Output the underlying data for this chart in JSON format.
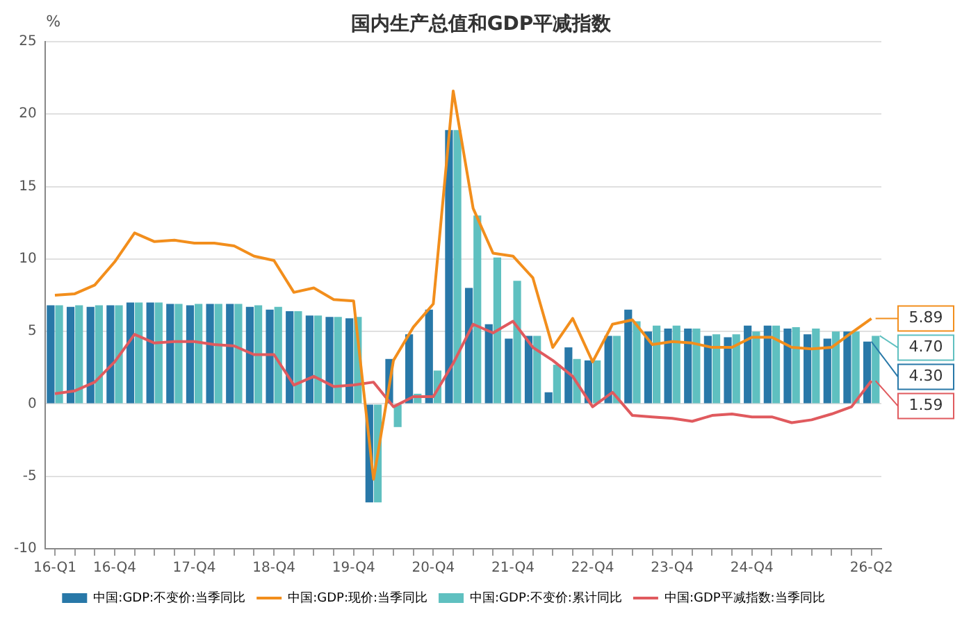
{
  "chart_data": {
    "type": "bar",
    "title": "国内生产总值和GDP平减指数",
    "ylabel": "%",
    "categories": [
      "16-Q1",
      null,
      null,
      "16-Q4",
      null,
      null,
      null,
      "17-Q4",
      null,
      null,
      null,
      "18-Q4",
      null,
      null,
      null,
      "19-Q4",
      null,
      null,
      null,
      "20-Q4",
      null,
      null,
      null,
      "21-Q4",
      null,
      null,
      null,
      "22-Q4",
      null,
      null,
      null,
      "23-Q4",
      null,
      null,
      null,
      "24-Q4",
      null,
      null,
      null,
      null,
      null,
      "26-Q2"
    ],
    "series": [
      {
        "name": "中国:GDP:不变价:当季同比",
        "color": "#2878a8",
        "values": [
          6.8,
          6.7,
          6.7,
          6.8,
          7.0,
          7.0,
          6.9,
          6.8,
          6.9,
          6.9,
          6.7,
          6.5,
          6.4,
          6.1,
          6.0,
          5.9,
          -6.8,
          3.1,
          4.8,
          6.5,
          18.9,
          8.0,
          5.5,
          4.5,
          4.7,
          0.8,
          3.9,
          3.0,
          4.7,
          6.5,
          5.0,
          5.2,
          5.2,
          4.7,
          4.6,
          5.4,
          5.4,
          5.2,
          4.8,
          4.5,
          5.0,
          4.3
        ],
        "value_labels": [
          null,
          null,
          null,
          null,
          null,
          null,
          null,
          null,
          null,
          null,
          null,
          null,
          null,
          null,
          null,
          null,
          null,
          null,
          null,
          null,
          null,
          null,
          null,
          null,
          null,
          null,
          null,
          null,
          null,
          null,
          null,
          null,
          null,
          null,
          null,
          null,
          null,
          null,
          null,
          null,
          null,
          "4.30"
        ]
      },
      {
        "name": "中国:GDP:现价:当季同比",
        "type": "line",
        "color": "#f28e1c",
        "values": [
          7.5,
          7.6,
          8.2,
          9.8,
          11.8,
          11.2,
          11.3,
          11.1,
          11.1,
          10.9,
          10.2,
          9.9,
          7.7,
          8.0,
          7.2,
          7.1,
          -5.2,
          3.0,
          5.3,
          6.9,
          21.6,
          13.5,
          10.4,
          10.2,
          8.7,
          3.9,
          5.9,
          2.9,
          5.5,
          5.8,
          4.1,
          4.3,
          4.2,
          3.9,
          3.9,
          4.6,
          4.6,
          3.9,
          3.8,
          3.9,
          4.9,
          5.89
        ],
        "value_labels": [
          null,
          null,
          null,
          null,
          null,
          null,
          null,
          null,
          null,
          null,
          null,
          null,
          null,
          null,
          null,
          null,
          null,
          null,
          null,
          null,
          null,
          null,
          null,
          null,
          null,
          null,
          null,
          null,
          null,
          null,
          null,
          null,
          null,
          null,
          null,
          null,
          null,
          null,
          null,
          null,
          null,
          "5.89"
        ]
      },
      {
        "name": "中国:GDP:不变价:累计同比",
        "color": "#5fc0c0",
        "values": [
          6.8,
          6.8,
          6.8,
          6.8,
          7.0,
          7.0,
          6.9,
          6.9,
          6.9,
          6.9,
          6.8,
          6.7,
          6.4,
          6.1,
          6.0,
          6.0,
          -6.8,
          -1.6,
          0.7,
          2.3,
          18.9,
          13.0,
          10.1,
          8.5,
          4.7,
          2.7,
          3.1,
          3.0,
          4.7,
          5.7,
          5.4,
          5.4,
          5.2,
          4.8,
          4.8,
          5.0,
          5.4,
          5.3,
          5.2,
          5.0,
          5.0,
          4.7
        ],
        "value_labels": [
          null,
          null,
          null,
          null,
          null,
          null,
          null,
          null,
          null,
          null,
          null,
          null,
          null,
          null,
          null,
          null,
          null,
          null,
          null,
          null,
          null,
          null,
          null,
          null,
          null,
          null,
          null,
          null,
          null,
          null,
          null,
          null,
          null,
          null,
          null,
          null,
          null,
          null,
          null,
          null,
          null,
          "4.70"
        ]
      },
      {
        "name": "中国:GDP平减指数:当季同比",
        "type": "line",
        "color": "#e05a5e",
        "values": [
          0.7,
          0.9,
          1.5,
          2.9,
          4.8,
          4.2,
          4.3,
          4.3,
          4.1,
          4.0,
          3.4,
          3.4,
          1.3,
          1.9,
          1.2,
          1.3,
          1.5,
          -0.2,
          0.5,
          0.5,
          2.8,
          5.5,
          4.9,
          5.7,
          3.9,
          3.0,
          1.9,
          -0.2,
          0.8,
          -0.8,
          -0.9,
          -1.0,
          -1.2,
          -0.8,
          -0.7,
          -0.9,
          -0.9,
          -1.3,
          -1.1,
          -0.7,
          -0.2,
          1.59
        ],
        "value_labels": [
          null,
          null,
          null,
          null,
          null,
          null,
          null,
          null,
          null,
          null,
          null,
          null,
          null,
          null,
          null,
          null,
          null,
          null,
          null,
          null,
          null,
          null,
          null,
          null,
          null,
          null,
          null,
          null,
          null,
          null,
          null,
          null,
          null,
          null,
          null,
          null,
          null,
          null,
          null,
          null,
          null,
          "1.59"
        ]
      }
    ],
    "ylim": [
      -10,
      25
    ],
    "yticks": [
      -10,
      -5,
      0,
      5,
      10,
      15,
      20,
      25
    ],
    "grid": "y",
    "legend": "bottom",
    "marker": "none"
  }
}
